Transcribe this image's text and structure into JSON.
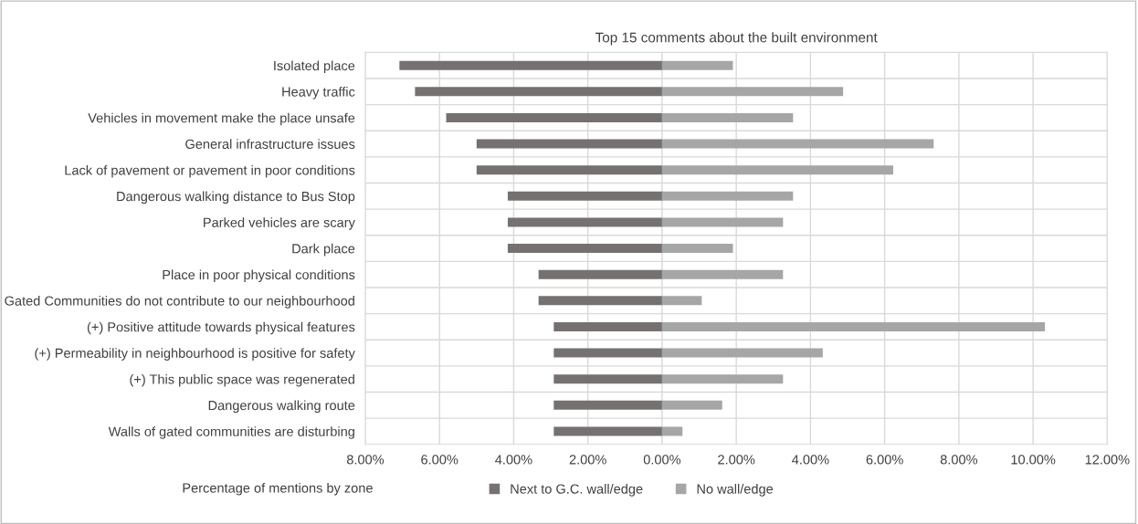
{
  "chart_data": {
    "type": "bar",
    "orientation": "horizontal",
    "stacked": true,
    "title": "Top 15 comments about the built environment",
    "categories": [
      "Isolated place",
      "Heavy traffic",
      "Vehicles in movement make the place unsafe",
      "General infrastructure issues",
      "Lack of pavement or pavement in poor conditions",
      "Dangerous walking distance to Bus Stop",
      "Parked vehicles are scary",
      "Dark place",
      "Place in poor physical conditions",
      "Gated Communities do not contribute to our neighbourhood",
      "(+) Positive attitude towards physical features",
      "(+) Permeability in neighbourhood is positive for safety",
      "(+) This public space was regenerated",
      "Dangerous walking route",
      "Walls of gated communities are disturbing"
    ],
    "series": [
      {
        "name": "Next to G.C. wall/edge",
        "color": "#767171",
        "values": [
          -7.08,
          -6.66,
          -5.82,
          -5.0,
          -5.0,
          -4.16,
          -4.16,
          -4.16,
          -3.33,
          -3.33,
          -2.92,
          -2.92,
          -2.92,
          -2.92,
          -2.92
        ]
      },
      {
        "name": "No wall/edge",
        "color": "#a6a6a6",
        "values": [
          1.91,
          4.88,
          3.53,
          7.32,
          6.23,
          3.53,
          3.26,
          1.91,
          3.26,
          1.07,
          10.32,
          4.33,
          3.26,
          1.62,
          0.55
        ]
      }
    ],
    "xlim": [
      -8,
      12
    ],
    "xticks": [
      {
        "value": -8,
        "label": "8.00%"
      },
      {
        "value": -6,
        "label": "6.00%"
      },
      {
        "value": -4,
        "label": "4.00%"
      },
      {
        "value": -2,
        "label": "2.00%"
      },
      {
        "value": 0,
        "label": "0.00%"
      },
      {
        "value": 2,
        "label": "2.00%"
      },
      {
        "value": 4,
        "label": "4.00%"
      },
      {
        "value": 6,
        "label": "6.00%"
      },
      {
        "value": 8,
        "label": "8.00%"
      },
      {
        "value": 10,
        "label": "10.00%"
      },
      {
        "value": 12,
        "label": "12.00%"
      }
    ],
    "grid": true,
    "legend": "bottom",
    "annotations": [
      "Percentage of mentions by zone"
    ]
  }
}
